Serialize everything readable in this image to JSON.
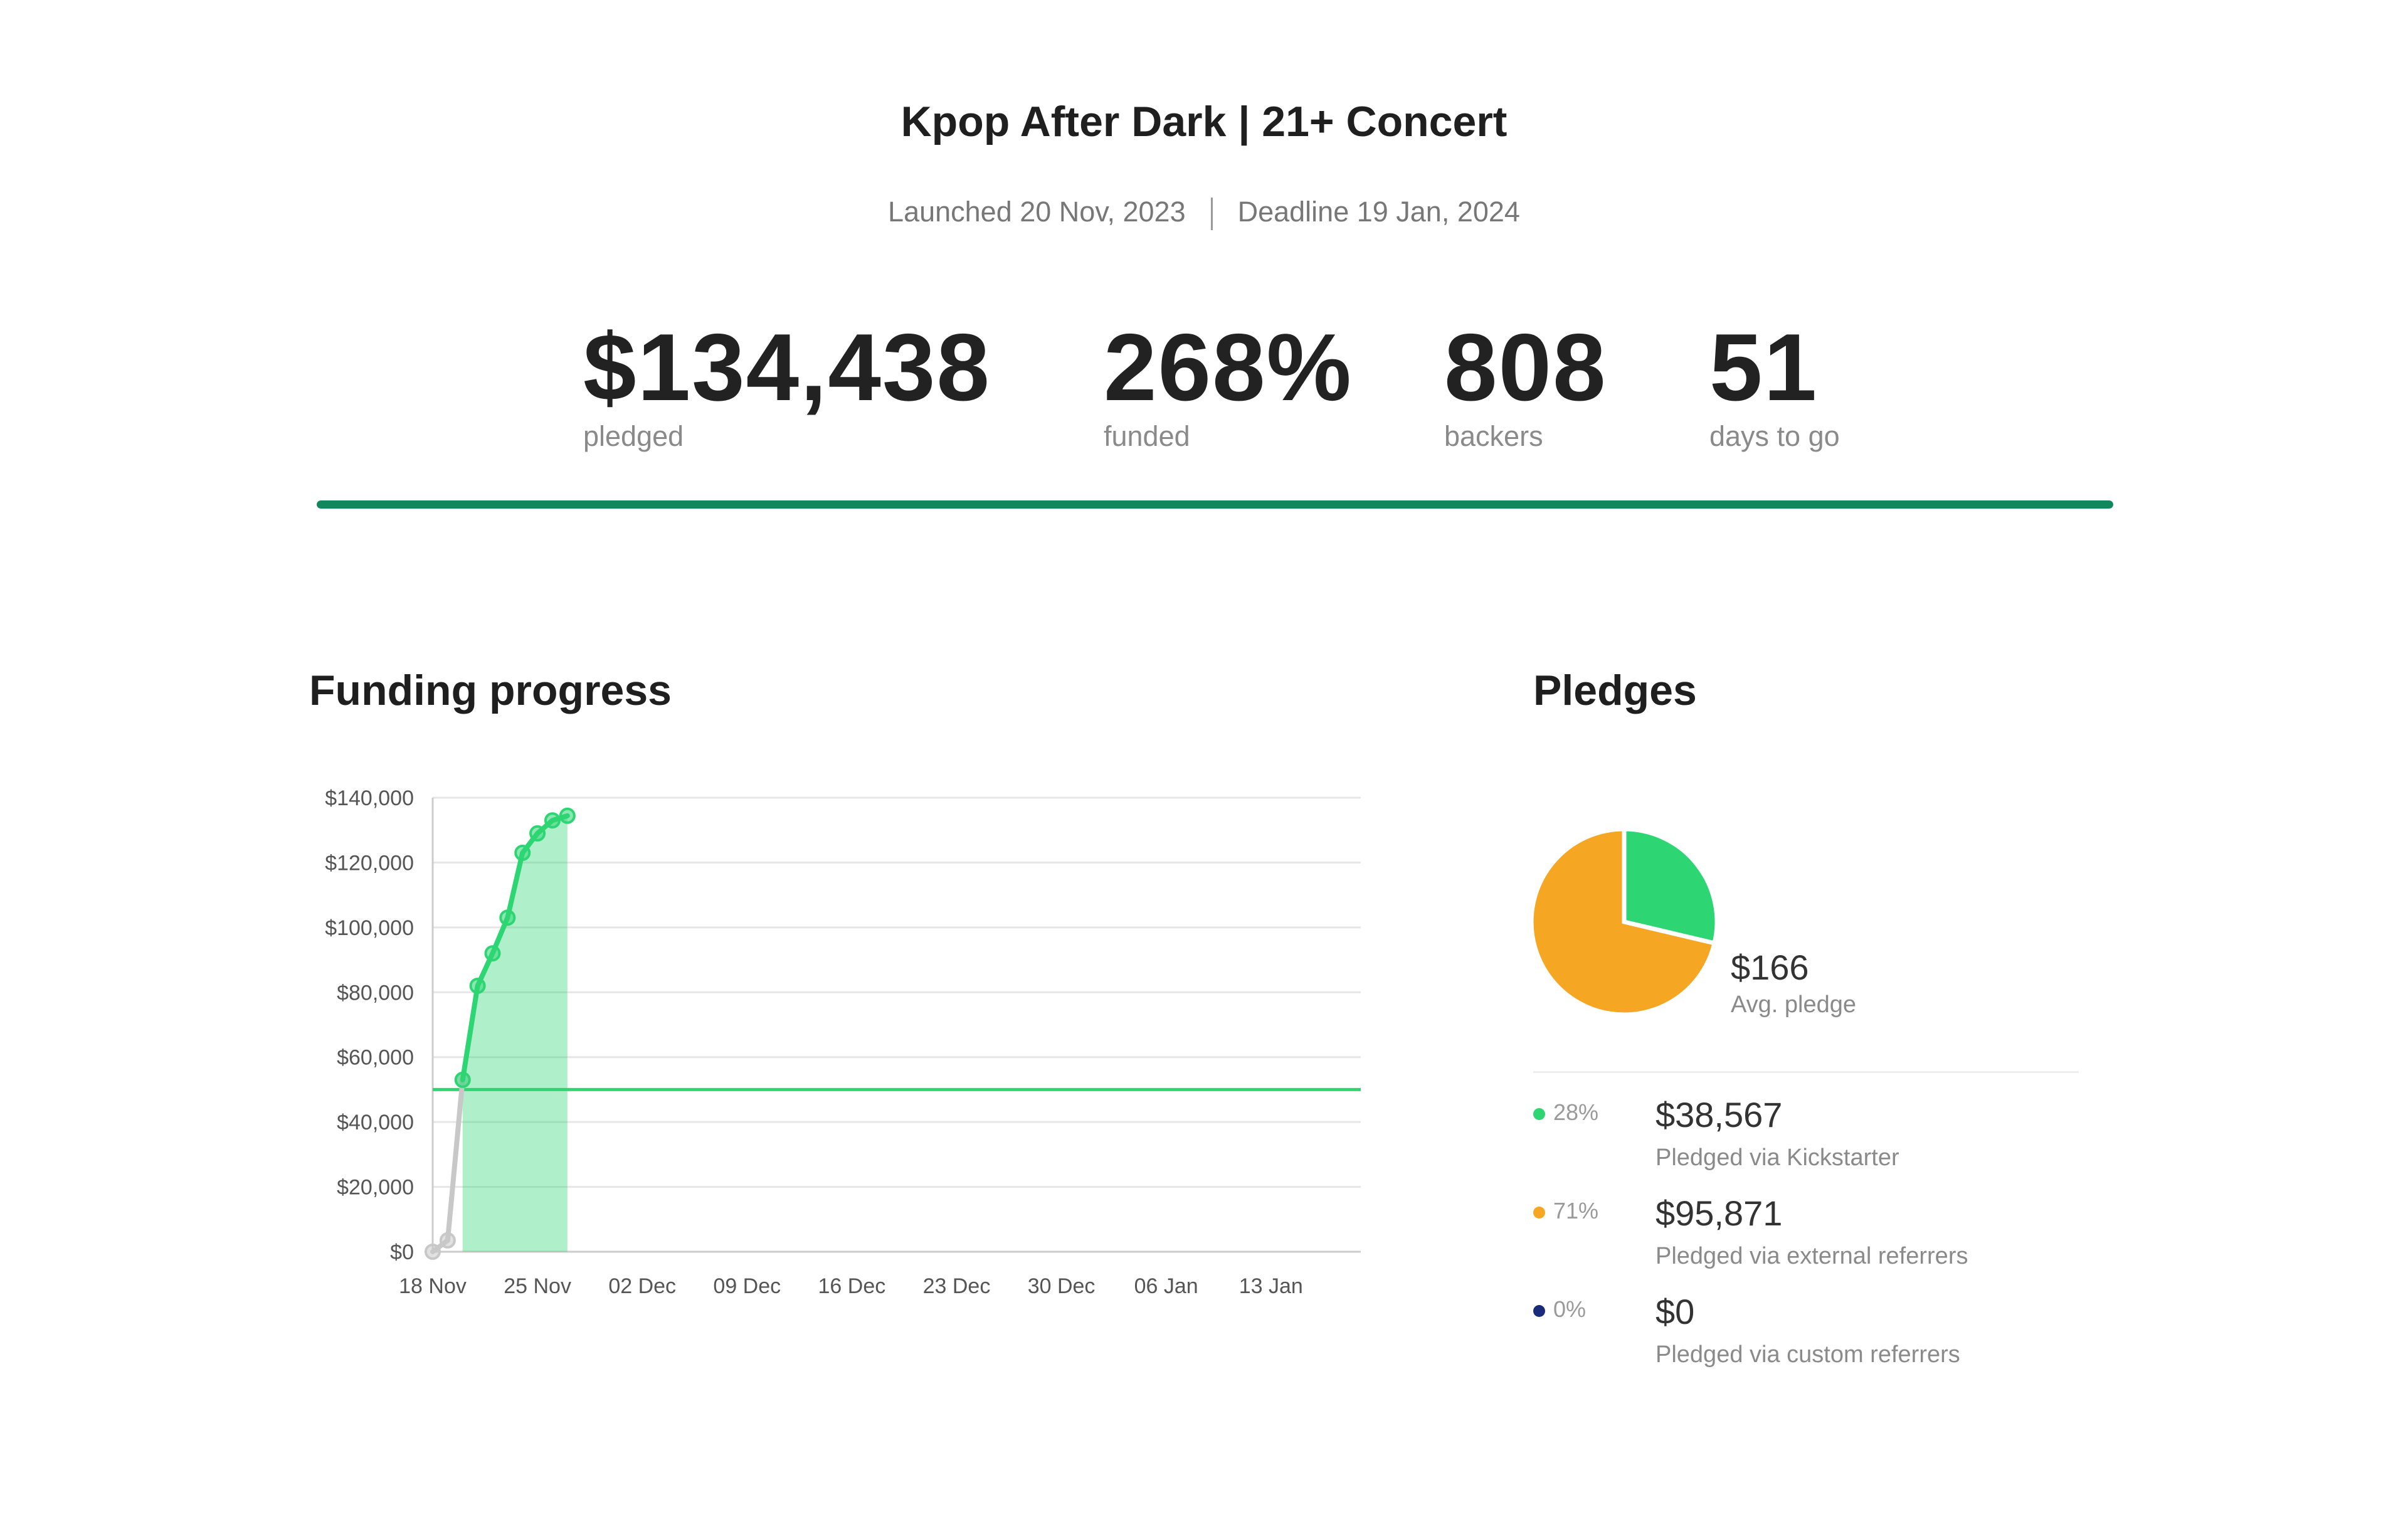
{
  "header": {
    "title": "Kpop After Dark | 21+ Concert",
    "launched": "Launched 20 Nov, 2023",
    "deadline": "Deadline 19 Jan, 2024"
  },
  "stats": {
    "pledged": {
      "value": "$134,438",
      "label": "pledged"
    },
    "funded": {
      "value": "268%",
      "label": "funded"
    },
    "backers": {
      "value": "808",
      "label": "backers"
    },
    "days": {
      "value": "51",
      "label": "days to go"
    },
    "progress_fraction": 1.0,
    "progress_color": "#11875d"
  },
  "funding": {
    "title": "Funding progress"
  },
  "pledges": {
    "title": "Pledges",
    "avg_value": "$166",
    "avg_label": "Avg. pledge",
    "breakdown": [
      {
        "pct": "28%",
        "amount": "$38,567",
        "label": "Pledged via Kickstarter",
        "color": "#2ed573"
      },
      {
        "pct": "71%",
        "amount": "$95,871",
        "label": "Pledged via external referrers",
        "color": "#f5a623"
      },
      {
        "pct": "0%",
        "amount": "$0",
        "label": "Pledged via custom referrers",
        "color": "#1a2a7a"
      }
    ]
  },
  "chart_data": [
    {
      "type": "line",
      "title": "Funding progress",
      "x_ticks": [
        "18 Nov",
        "25 Nov",
        "02 Dec",
        "09 Dec",
        "16 Dec",
        "23 Dec",
        "30 Dec",
        "06 Jan",
        "13 Jan"
      ],
      "x_range": [
        "2023-11-18",
        "2024-01-19"
      ],
      "y_ticks": [
        "$0",
        "$20,000",
        "$40,000",
        "$60,000",
        "$80,000",
        "$100,000",
        "$120,000",
        "$140,000"
      ],
      "ylim": [
        0,
        140000
      ],
      "goal": 50000,
      "grid": true,
      "series": [
        {
          "color": "#c8c8c8",
          "points": [
            [
              "2023-11-18",
              0
            ],
            [
              "2023-11-19",
              3500
            ],
            [
              "2023-11-20",
              53000
            ]
          ]
        },
        {
          "color": "#2ed573",
          "points": [
            [
              "2023-11-20",
              53000
            ],
            [
              "2023-11-21",
              82000
            ],
            [
              "2023-11-22",
              92000
            ],
            [
              "2023-11-23",
              103000
            ],
            [
              "2023-11-24",
              123000
            ],
            [
              "2023-11-25",
              129000
            ],
            [
              "2023-11-26",
              133000
            ],
            [
              "2023-11-27",
              134438
            ]
          ]
        }
      ]
    },
    {
      "type": "pie",
      "labels": [
        "Pledged via Kickstarter",
        "Pledged via external referrers",
        "Pledged via custom referrers"
      ],
      "values": [
        38567,
        95871,
        0
      ],
      "colors": [
        "#2ed573",
        "#f5a623",
        "#1a2a7a"
      ]
    }
  ]
}
